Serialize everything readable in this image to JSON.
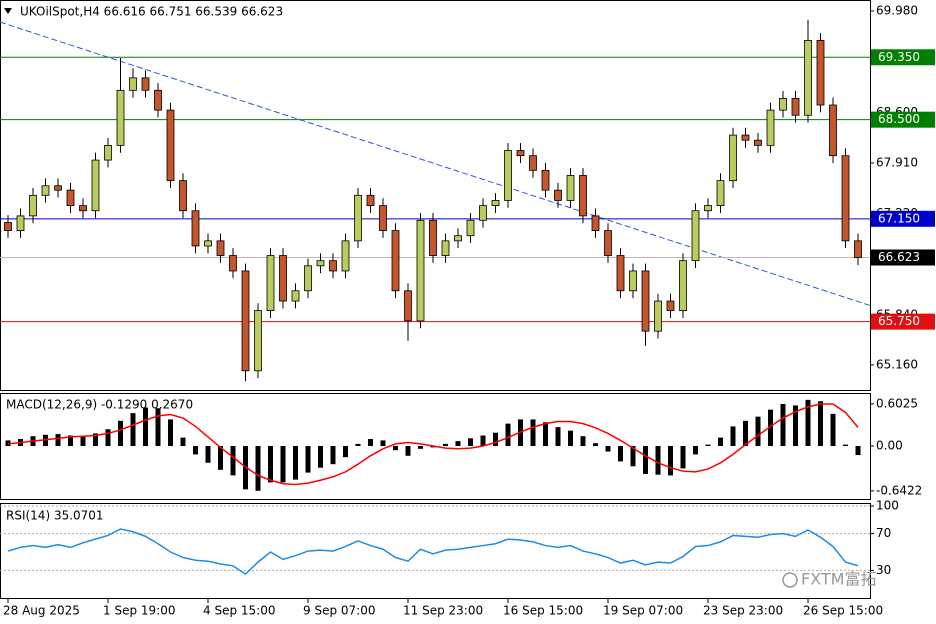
{
  "chart_data": [
    {
      "type": "candlestick",
      "title": "UKOilSpot,H4 66.616 66.751 66.539 66.623",
      "categories": [
        "28 Aug 2025",
        null,
        null,
        null,
        null,
        null,
        null,
        null,
        "1 Sep 19:00",
        null,
        null,
        null,
        null,
        null,
        null,
        null,
        "4 Sep 15:00",
        null,
        null,
        null,
        null,
        null,
        null,
        null,
        "9 Sep 07:00",
        null,
        null,
        null,
        null,
        null,
        null,
        null,
        "11 Sep 23:00",
        null,
        null,
        null,
        null,
        null,
        null,
        null,
        "16 Sep 15:00",
        null,
        null,
        null,
        null,
        null,
        null,
        null,
        "19 Sep 07:00",
        null,
        null,
        null,
        null,
        null,
        null,
        null,
        "23 Sep 23:00",
        null,
        null,
        null,
        null,
        null,
        null,
        null,
        "26 Sep 15:00",
        null,
        null,
        null,
        null
      ],
      "open": [
        67.1,
        66.99,
        67.19,
        67.47,
        67.6,
        67.54,
        67.33,
        67.26,
        67.95,
        68.15,
        68.9,
        69.07,
        68.9,
        68.63,
        67.67,
        67.26,
        66.78,
        66.85,
        66.65,
        66.44,
        65.08,
        65.9,
        66.65,
        66.03,
        66.17,
        66.51,
        66.58,
        66.44,
        66.85,
        67.47,
        67.33,
        66.99,
        66.17,
        65.76,
        67.13,
        66.65,
        66.85,
        66.92,
        67.13,
        67.33,
        67.4,
        68.08,
        68.01,
        67.81,
        67.54,
        67.4,
        67.74,
        67.19,
        66.99,
        66.65,
        66.17,
        66.44,
        65.62,
        66.03,
        65.9,
        66.58,
        67.26,
        67.33,
        67.67,
        68.29,
        68.22,
        68.15,
        68.63,
        68.79,
        68.56,
        69.58,
        68.7,
        68.01,
        66.85
      ],
      "high": [
        67.2,
        67.29,
        67.57,
        67.7,
        67.7,
        67.64,
        67.43,
        68.05,
        68.25,
        69.34,
        69.2,
        69.17,
        69.0,
        68.73,
        67.77,
        67.36,
        66.95,
        66.95,
        66.75,
        66.54,
        66.0,
        66.75,
        66.75,
        66.27,
        66.61,
        66.68,
        66.68,
        66.95,
        67.57,
        67.57,
        67.43,
        67.09,
        66.27,
        67.23,
        67.23,
        66.95,
        67.02,
        67.23,
        67.43,
        67.5,
        68.18,
        68.18,
        68.11,
        67.91,
        67.64,
        67.84,
        67.84,
        67.29,
        67.09,
        66.75,
        66.54,
        66.54,
        66.13,
        66.13,
        66.68,
        67.36,
        67.43,
        67.77,
        68.39,
        68.39,
        68.32,
        68.73,
        68.89,
        68.89,
        69.86,
        69.68,
        68.8,
        68.11,
        66.95
      ],
      "low": [
        66.89,
        66.89,
        67.09,
        67.37,
        67.44,
        67.23,
        67.16,
        67.16,
        67.85,
        68.05,
        68.8,
        68.8,
        68.53,
        67.57,
        67.16,
        66.68,
        66.68,
        66.55,
        66.34,
        64.94,
        64.98,
        65.8,
        65.93,
        65.93,
        66.07,
        66.41,
        66.34,
        66.34,
        66.75,
        67.23,
        66.89,
        66.07,
        65.49,
        65.66,
        66.55,
        66.55,
        66.75,
        66.82,
        67.03,
        67.23,
        67.3,
        67.91,
        67.71,
        67.44,
        67.3,
        67.3,
        67.09,
        66.89,
        66.55,
        66.07,
        66.07,
        65.42,
        65.52,
        65.8,
        65.8,
        66.48,
        67.16,
        67.23,
        67.57,
        68.12,
        68.05,
        68.05,
        68.53,
        68.46,
        68.46,
        68.6,
        67.91,
        66.75,
        66.52
      ],
      "close": [
        66.99,
        67.19,
        67.47,
        67.6,
        67.54,
        67.33,
        67.26,
        67.95,
        68.15,
        68.9,
        69.07,
        68.9,
        68.63,
        67.67,
        67.26,
        66.78,
        66.85,
        66.65,
        66.44,
        65.08,
        65.9,
        66.65,
        66.03,
        66.17,
        66.51,
        66.58,
        66.44,
        66.85,
        67.47,
        67.33,
        66.99,
        66.17,
        65.76,
        67.13,
        66.65,
        66.85,
        66.92,
        67.13,
        67.33,
        67.4,
        68.08,
        68.01,
        67.81,
        67.54,
        67.4,
        67.74,
        67.19,
        66.99,
        66.65,
        66.17,
        66.44,
        65.62,
        66.03,
        65.9,
        66.58,
        67.26,
        67.33,
        67.67,
        68.29,
        68.22,
        68.15,
        68.63,
        68.79,
        68.56,
        69.58,
        68.7,
        68.01,
        66.85,
        66.623
      ],
      "up_color": "#b9cc5e",
      "down_color": "#c4552c",
      "ylim": [
        64.805,
        70.13
      ],
      "yticks": [
        {
          "value": 69.98,
          "label": "69.980"
        },
        {
          "value": 68.6,
          "label": "68.600"
        },
        {
          "value": 67.91,
          "label": "67.910"
        },
        {
          "value": 67.22,
          "label": "67.220"
        },
        {
          "value": 65.84,
          "label": "65.840"
        },
        {
          "value": 65.16,
          "label": "65.160"
        }
      ],
      "levels": [
        {
          "value": 69.35,
          "label": "69.350",
          "color": "#008000"
        },
        {
          "value": 68.5,
          "label": "68.500",
          "color": "#008000"
        },
        {
          "value": 67.15,
          "label": "67.150",
          "color": "#0000cc"
        },
        {
          "value": 66.623,
          "label": "66.623",
          "color": "#000000",
          "line_color": "#c8b4b4"
        },
        {
          "value": 65.75,
          "label": "65.750",
          "color": "#e01010"
        }
      ],
      "trendline": {
        "values": [
          69.83,
          65.97
        ],
        "color": "#3355dd"
      },
      "watermark": "FXTM富拓"
    },
    {
      "type": "macd",
      "title": "MACD(12,26,9) -0.1290 0.2670",
      "values": [
        0.08,
        0.1,
        0.14,
        0.16,
        0.17,
        0.15,
        0.14,
        0.18,
        0.24,
        0.36,
        0.47,
        0.55,
        0.54,
        0.38,
        0.12,
        -0.12,
        -0.24,
        -0.34,
        -0.42,
        -0.62,
        -0.64,
        -0.52,
        -0.52,
        -0.48,
        -0.38,
        -0.31,
        -0.26,
        -0.16,
        0.03,
        0.1,
        0.08,
        -0.06,
        -0.14,
        -0.04,
        -0.02,
        0.03,
        0.07,
        0.11,
        0.15,
        0.19,
        0.32,
        0.38,
        0.38,
        0.34,
        0.27,
        0.22,
        0.14,
        0.04,
        -0.08,
        -0.22,
        -0.29,
        -0.4,
        -0.41,
        -0.42,
        -0.32,
        -0.12,
        0.02,
        0.12,
        0.28,
        0.36,
        0.42,
        0.52,
        0.6,
        0.58,
        0.66,
        0.64,
        0.46,
        0.02,
        -0.129
      ],
      "signal": [
        0.03,
        0.05,
        0.07,
        0.09,
        0.11,
        0.13,
        0.14,
        0.15,
        0.18,
        0.23,
        0.3,
        0.37,
        0.43,
        0.45,
        0.4,
        0.28,
        0.13,
        -0.02,
        -0.16,
        -0.3,
        -0.42,
        -0.49,
        -0.54,
        -0.55,
        -0.53,
        -0.49,
        -0.44,
        -0.37,
        -0.26,
        -0.14,
        -0.04,
        0.03,
        0.05,
        0.03,
        0.0,
        -0.03,
        -0.04,
        -0.03,
        0.0,
        0.05,
        0.12,
        0.2,
        0.27,
        0.32,
        0.35,
        0.35,
        0.32,
        0.26,
        0.18,
        0.08,
        -0.03,
        -0.14,
        -0.24,
        -0.31,
        -0.36,
        -0.37,
        -0.33,
        -0.24,
        -0.12,
        0.02,
        0.15,
        0.28,
        0.4,
        0.49,
        0.56,
        0.6,
        0.6,
        0.48,
        0.267
      ],
      "color": "#000000",
      "signal_color": "#ff0000",
      "ylim": [
        -0.772,
        0.758
      ],
      "yticks": [
        0.6025,
        {
          "value": 0,
          "label": "0.00"
        },
        -0.6422
      ]
    },
    {
      "type": "line",
      "title": "RSI(14) 35.0701",
      "values": [
        51,
        55,
        57,
        55,
        58,
        55,
        60,
        64,
        68,
        75,
        72,
        67,
        59,
        50,
        44,
        41,
        40,
        37,
        35,
        26,
        39,
        50,
        42,
        46,
        51,
        52,
        51,
        56,
        62,
        57,
        53,
        44,
        40,
        53,
        48,
        52,
        53,
        55,
        57,
        59,
        64,
        63,
        61,
        57,
        55,
        57,
        51,
        48,
        44,
        38,
        41,
        36,
        39,
        38,
        45,
        56,
        57,
        61,
        68,
        67,
        66,
        69,
        70,
        67,
        74,
        66,
        56,
        39,
        35.0701
      ],
      "color": "#1e8ce6",
      "ylim": [
        0,
        100
      ],
      "yticks": [
        100,
        70,
        30
      ],
      "grid": true
    }
  ]
}
